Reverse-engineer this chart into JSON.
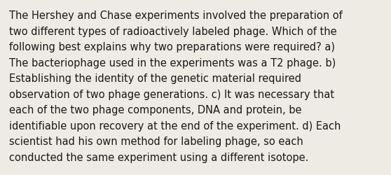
{
  "background_color": "#eeeae4",
  "text_color": "#1a1a1a",
  "font_size": 10.5,
  "font_family": "DejaVu Sans",
  "lines": [
    "The Hershey and Chase experiments involved the preparation of",
    "two different types of radioactively labeled phage. Which of the",
    "following best explains why two preparations were required? a)",
    "The bacteriophage used in the experiments was a T2 phage. b)",
    "Establishing the identity of the genetic material required",
    "observation of two phage generations. c) It was necessary that",
    "each of the two phage components, DNA and protein, be",
    "identifiable upon recovery at the end of the experiment. d) Each",
    "scientist had his own method for labeling phage, so each",
    "conducted the same experiment using a different isotope."
  ],
  "figsize": [
    5.58,
    2.51
  ],
  "dpi": 100
}
